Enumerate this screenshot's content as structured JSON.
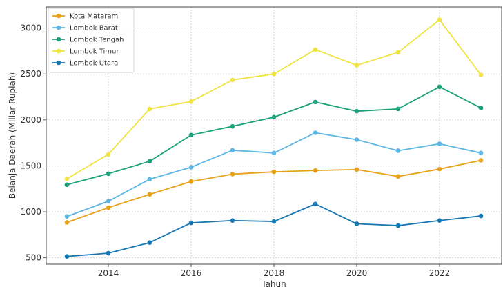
{
  "chart_data": {
    "type": "line",
    "xlabel": "Tahun",
    "ylabel": "Belanja Daerah (Miliar Rupiah)",
    "x": [
      2013,
      2014,
      2015,
      2016,
      2017,
      2018,
      2019,
      2020,
      2021,
      2022,
      2023
    ],
    "xticks": [
      2014,
      2016,
      2018,
      2020,
      2022
    ],
    "yticks": [
      500,
      1000,
      1500,
      2000,
      2500,
      3000
    ],
    "xlim": [
      2012.5,
      2023.5
    ],
    "ylim": [
      430,
      3230
    ],
    "grid": true,
    "legend_position": "top-left",
    "series": [
      {
        "name": "Kota Mataram",
        "color": "#E6A117",
        "values": [
          885,
          1045,
          1190,
          1330,
          1410,
          1435,
          1450,
          1460,
          1385,
          1465,
          1560
        ]
      },
      {
        "name": "Lombok Barat",
        "color": "#5DB6E4",
        "values": [
          950,
          1115,
          1355,
          1485,
          1670,
          1640,
          1860,
          1785,
          1665,
          1740,
          1640
        ]
      },
      {
        "name": "Lombok Tengah",
        "color": "#1AA179",
        "values": [
          1295,
          1415,
          1550,
          1835,
          1930,
          2030,
          2195,
          2095,
          2120,
          2360,
          2130
        ]
      },
      {
        "name": "Lombok Timur",
        "color": "#EFE442",
        "values": [
          1360,
          1625,
          2120,
          2200,
          2435,
          2500,
          2765,
          2595,
          2735,
          3090,
          2490
        ]
      },
      {
        "name": "Lombok Utara",
        "color": "#1677B3",
        "values": [
          515,
          550,
          665,
          880,
          905,
          895,
          1085,
          870,
          850,
          905,
          955
        ]
      }
    ]
  }
}
